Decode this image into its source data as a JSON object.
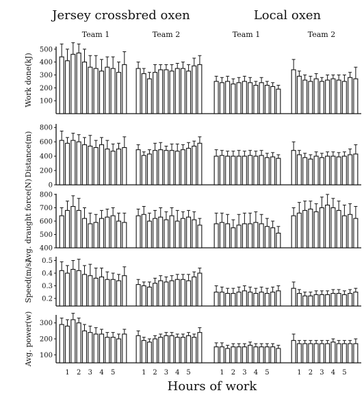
{
  "chart_data": {
    "type": "bar",
    "xlabel": "Hours of work",
    "groups": [
      {
        "title": "Jersey crossbred oxen",
        "teams": [
          "Team 1",
          "Team 2"
        ]
      },
      {
        "title": "Local oxen",
        "teams": [
          "Team 1",
          "Team 2"
        ]
      }
    ],
    "hour_ticks": [
      "1",
      "2",
      "3",
      "4",
      "5"
    ],
    "panels": [
      {
        "ylabel": "Work done(kJ)",
        "ylim": [
          0,
          520
        ],
        "yticks": [
          100,
          200,
          300,
          400,
          500
        ],
        "tick_labels": [
          "100",
          "200",
          "300",
          "400",
          "500"
        ],
        "series": [
          {
            "values": [
              440,
              410,
              460,
              470,
              400,
              360,
              350,
              330,
              360,
              350,
              320,
              380
            ],
            "errors": [
              100,
              90,
              90,
              70,
              100,
              90,
              100,
              90,
              80,
              90,
              80,
              100
            ]
          },
          {
            "values": [
              350,
              310,
              270,
              320,
              340,
              340,
              330,
              350,
              350,
              330,
              370,
              380
            ],
            "errors": [
              50,
              40,
              50,
              60,
              40,
              40,
              50,
              40,
              50,
              50,
              60,
              70
            ]
          },
          {
            "values": [
              250,
              240,
              250,
              230,
              240,
              250,
              240,
              220,
              240,
              220,
              210,
              190
            ],
            "errors": [
              40,
              40,
              40,
              40,
              40,
              40,
              40,
              30,
              40,
              30,
              30,
              30
            ]
          },
          {
            "values": [
              340,
              290,
              260,
              250,
              270,
              250,
              260,
              270,
              260,
              250,
              280,
              270
            ],
            "errors": [
              80,
              40,
              40,
              40,
              40,
              30,
              40,
              30,
              40,
              50,
              40,
              90
            ]
          }
        ]
      },
      {
        "ylabel": "Distance(m)",
        "ylim": [
          0,
          850
        ],
        "yticks": [
          0,
          200,
          400,
          600,
          800
        ],
        "tick_labels": [
          "0",
          "200",
          "400",
          "600",
          "800"
        ],
        "series": [
          {
            "values": [
              620,
              580,
              620,
              600,
              560,
              540,
              520,
              560,
              500,
              470,
              500,
              520
            ],
            "errors": [
              130,
              80,
              100,
              100,
              100,
              150,
              100,
              100,
              120,
              100,
              80,
              150
            ]
          },
          {
            "values": [
              490,
              410,
              430,
              480,
              490,
              480,
              480,
              470,
              490,
              510,
              540,
              580
            ],
            "errors": [
              70,
              50,
              60,
              100,
              100,
              60,
              90,
              100,
              70,
              80,
              70,
              90
            ]
          },
          {
            "values": [
              400,
              410,
              400,
              400,
              400,
              400,
              410,
              400,
              410,
              380,
              390,
              370
            ],
            "errors": [
              90,
              70,
              70,
              70,
              80,
              70,
              70,
              70,
              70,
              60,
              60,
              50
            ]
          },
          {
            "values": [
              480,
              420,
              380,
              360,
              400,
              380,
              400,
              400,
              390,
              400,
              420,
              430
            ],
            "errors": [
              120,
              60,
              60,
              60,
              60,
              60,
              60,
              60,
              60,
              60,
              80,
              130
            ]
          }
        ]
      },
      {
        "ylabel": "Avg. draught force(N)",
        "ylim": [
          400,
          805
        ],
        "yticks": [
          400,
          500,
          600,
          700,
          800
        ],
        "tick_labels": [
          "400",
          "500",
          "600",
          "700",
          "800"
        ],
        "series": [
          {
            "values": [
              640,
              680,
              710,
              680,
              620,
              580,
              590,
              620,
              630,
              640,
              600,
              590
            ],
            "errors": [
              60,
              70,
              80,
              90,
              80,
              80,
              60,
              60,
              60,
              60,
              60,
              70
            ]
          },
          {
            "values": [
              640,
              650,
              600,
              620,
              630,
              610,
              640,
              600,
              620,
              630,
              610,
              570
            ],
            "errors": [
              50,
              60,
              60,
              60,
              70,
              60,
              60,
              80,
              50,
              50,
              60,
              50
            ]
          },
          {
            "values": [
              580,
              590,
              580,
              550,
              570,
              580,
              580,
              590,
              580,
              560,
              550,
              510
            ],
            "errors": [
              80,
              70,
              70,
              60,
              80,
              80,
              80,
              80,
              70,
              60,
              50,
              50
            ]
          },
          {
            "values": [
              640,
              660,
              680,
              690,
              670,
              700,
              720,
              700,
              680,
              640,
              650,
              620
            ],
            "errors": [
              60,
              80,
              70,
              60,
              60,
              80,
              80,
              70,
              70,
              80,
              80,
              90
            ]
          }
        ]
      },
      {
        "ylabel": "Speed(m/s)",
        "ylim": [
          0.14,
          0.53
        ],
        "yticks": [
          0.2,
          0.3,
          0.4,
          0.5
        ],
        "tick_labels": [
          "0.2",
          "0.3",
          "0.4",
          "0.5"
        ],
        "series": [
          {
            "values": [
              0.42,
              0.4,
              0.43,
              0.42,
              0.39,
              0.38,
              0.36,
              0.37,
              0.35,
              0.35,
              0.34,
              0.38
            ],
            "errors": [
              0.07,
              0.06,
              0.07,
              0.09,
              0.07,
              0.09,
              0.08,
              0.07,
              0.06,
              0.05,
              0.05,
              0.07
            ]
          },
          {
            "values": [
              0.31,
              0.3,
              0.29,
              0.32,
              0.34,
              0.33,
              0.34,
              0.35,
              0.35,
              0.34,
              0.37,
              0.4
            ],
            "errors": [
              0.04,
              0.03,
              0.04,
              0.04,
              0.04,
              0.04,
              0.04,
              0.04,
              0.04,
              0.05,
              0.04,
              0.04
            ]
          },
          {
            "values": [
              0.25,
              0.25,
              0.24,
              0.24,
              0.25,
              0.26,
              0.25,
              0.24,
              0.25,
              0.24,
              0.25,
              0.26
            ],
            "errors": [
              0.05,
              0.04,
              0.04,
              0.04,
              0.04,
              0.04,
              0.04,
              0.04,
              0.04,
              0.04,
              0.04,
              0.04
            ]
          },
          {
            "values": [
              0.28,
              0.24,
              0.22,
              0.22,
              0.23,
              0.23,
              0.23,
              0.24,
              0.24,
              0.23,
              0.24,
              0.25
            ],
            "errors": [
              0.05,
              0.03,
              0.03,
              0.03,
              0.03,
              0.03,
              0.03,
              0.03,
              0.03,
              0.03,
              0.03,
              0.03
            ]
          }
        ]
      },
      {
        "ylabel": "Avg. power(w)",
        "ylim": [
          50,
          350
        ],
        "yticks": [
          100,
          200,
          300
        ],
        "tick_labels": [
          "100",
          "200",
          "300"
        ],
        "series": [
          {
            "values": [
              290,
              280,
              320,
              300,
              250,
              240,
              230,
              230,
              210,
              210,
              200,
              230
            ],
            "errors": [
              40,
              40,
              40,
              30,
              40,
              40,
              40,
              30,
              30,
              30,
              30,
              30
            ]
          },
          {
            "values": [
              220,
              190,
              180,
              200,
              210,
              220,
              220,
              210,
              210,
              220,
              210,
              240
            ],
            "errors": [
              30,
              20,
              20,
              20,
              20,
              20,
              20,
              20,
              20,
              20,
              20,
              30
            ]
          },
          {
            "values": [
              150,
              150,
              140,
              150,
              150,
              150,
              160,
              150,
              150,
              150,
              150,
              140
            ],
            "errors": [
              25,
              25,
              20,
              20,
              20,
              20,
              20,
              20,
              20,
              20,
              20,
              20
            ]
          },
          {
            "values": [
              190,
              170,
              170,
              170,
              170,
              170,
              170,
              180,
              170,
              170,
              170,
              170
            ],
            "errors": [
              40,
              20,
              20,
              20,
              20,
              20,
              20,
              20,
              20,
              20,
              20,
              30
            ]
          }
        ]
      }
    ]
  }
}
